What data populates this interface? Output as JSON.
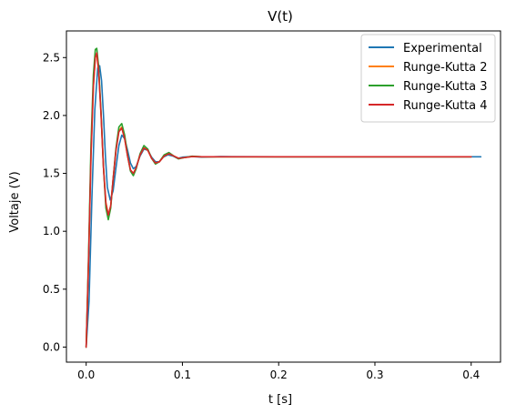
{
  "chart_data": {
    "type": "line",
    "title": "V(t)",
    "xlabel": "t [s]",
    "ylabel": "Voltaje (V)",
    "xlim": [
      -0.0205,
      0.4305
    ],
    "ylim": [
      -0.13,
      2.73
    ],
    "xticks": [
      0.0,
      0.1,
      0.2,
      0.3,
      0.4
    ],
    "xtick_labels": [
      "0.0",
      "0.1",
      "0.2",
      "0.3",
      "0.4"
    ],
    "yticks": [
      0.0,
      0.5,
      1.0,
      1.5,
      2.0,
      2.5
    ],
    "ytick_labels": [
      "0.0",
      "0.5",
      "1.0",
      "1.5",
      "2.0",
      "2.5"
    ],
    "grid": false,
    "legend_position": "top-right",
    "series": [
      {
        "name": "Experimental",
        "color": "#1f77b4",
        "points": [
          [
            0,
            0.0
          ],
          [
            0.003,
            0.4
          ],
          [
            0.006,
            1.3
          ],
          [
            0.009,
            2.05
          ],
          [
            0.012,
            2.41
          ],
          [
            0.014,
            2.43
          ],
          [
            0.016,
            2.3
          ],
          [
            0.018,
            2.0
          ],
          [
            0.02,
            1.65
          ],
          [
            0.022,
            1.38
          ],
          [
            0.025,
            1.27
          ],
          [
            0.028,
            1.35
          ],
          [
            0.031,
            1.55
          ],
          [
            0.034,
            1.74
          ],
          [
            0.037,
            1.83
          ],
          [
            0.04,
            1.8
          ],
          [
            0.043,
            1.7
          ],
          [
            0.046,
            1.59
          ],
          [
            0.049,
            1.54
          ],
          [
            0.052,
            1.56
          ],
          [
            0.056,
            1.65
          ],
          [
            0.06,
            1.71
          ],
          [
            0.064,
            1.7
          ],
          [
            0.068,
            1.64
          ],
          [
            0.072,
            1.6
          ],
          [
            0.076,
            1.6
          ],
          [
            0.08,
            1.64
          ],
          [
            0.085,
            1.66
          ],
          [
            0.09,
            1.65
          ],
          [
            0.095,
            1.63
          ],
          [
            0.1,
            1.64
          ],
          [
            0.11,
            1.645
          ],
          [
            0.12,
            1.64
          ],
          [
            0.14,
            1.645
          ],
          [
            0.2,
            1.643
          ],
          [
            0.3,
            1.643
          ],
          [
            0.41,
            1.643
          ]
        ]
      },
      {
        "name": "Runge-Kutta 2",
        "color": "#ff7f0e",
        "points": [
          [
            0,
            0.0
          ],
          [
            0.0025,
            0.75
          ],
          [
            0.005,
            1.65
          ],
          [
            0.0075,
            2.25
          ],
          [
            0.0095,
            2.5
          ],
          [
            0.011,
            2.53
          ],
          [
            0.013,
            2.38
          ],
          [
            0.0155,
            2.0
          ],
          [
            0.018,
            1.55
          ],
          [
            0.0205,
            1.25
          ],
          [
            0.023,
            1.14
          ],
          [
            0.0255,
            1.22
          ],
          [
            0.028,
            1.45
          ],
          [
            0.031,
            1.7
          ],
          [
            0.034,
            1.87
          ],
          [
            0.037,
            1.9
          ],
          [
            0.04,
            1.8
          ],
          [
            0.043,
            1.65
          ],
          [
            0.046,
            1.53
          ],
          [
            0.049,
            1.5
          ],
          [
            0.052,
            1.55
          ],
          [
            0.056,
            1.66
          ],
          [
            0.06,
            1.72
          ],
          [
            0.064,
            1.7
          ],
          [
            0.068,
            1.63
          ],
          [
            0.072,
            1.59
          ],
          [
            0.076,
            1.6
          ],
          [
            0.081,
            1.65
          ],
          [
            0.086,
            1.67
          ],
          [
            0.091,
            1.65
          ],
          [
            0.096,
            1.63
          ],
          [
            0.101,
            1.635
          ],
          [
            0.11,
            1.645
          ],
          [
            0.12,
            1.643
          ],
          [
            0.2,
            1.643
          ],
          [
            0.4,
            1.643
          ]
        ]
      },
      {
        "name": "Runge-Kutta 3",
        "color": "#2ca02c",
        "points": [
          [
            0,
            0.0
          ],
          [
            0.0025,
            0.8
          ],
          [
            0.005,
            1.75
          ],
          [
            0.0075,
            2.35
          ],
          [
            0.0095,
            2.57
          ],
          [
            0.011,
            2.58
          ],
          [
            0.013,
            2.42
          ],
          [
            0.0155,
            2.02
          ],
          [
            0.018,
            1.55
          ],
          [
            0.0205,
            1.2
          ],
          [
            0.023,
            1.1
          ],
          [
            0.0255,
            1.2
          ],
          [
            0.028,
            1.45
          ],
          [
            0.031,
            1.72
          ],
          [
            0.034,
            1.9
          ],
          [
            0.037,
            1.93
          ],
          [
            0.04,
            1.83
          ],
          [
            0.043,
            1.66
          ],
          [
            0.046,
            1.52
          ],
          [
            0.049,
            1.48
          ],
          [
            0.052,
            1.54
          ],
          [
            0.056,
            1.67
          ],
          [
            0.06,
            1.74
          ],
          [
            0.064,
            1.71
          ],
          [
            0.068,
            1.63
          ],
          [
            0.072,
            1.58
          ],
          [
            0.076,
            1.6
          ],
          [
            0.081,
            1.66
          ],
          [
            0.086,
            1.68
          ],
          [
            0.091,
            1.65
          ],
          [
            0.096,
            1.625
          ],
          [
            0.101,
            1.635
          ],
          [
            0.11,
            1.648
          ],
          [
            0.12,
            1.643
          ],
          [
            0.2,
            1.643
          ],
          [
            0.4,
            1.643
          ]
        ]
      },
      {
        "name": "Runge-Kutta 4",
        "color": "#d62728",
        "points": [
          [
            0,
            0.0
          ],
          [
            0.0025,
            0.75
          ],
          [
            0.005,
            1.65
          ],
          [
            0.0075,
            2.25
          ],
          [
            0.0095,
            2.5
          ],
          [
            0.011,
            2.54
          ],
          [
            0.013,
            2.38
          ],
          [
            0.0155,
            2.0
          ],
          [
            0.018,
            1.55
          ],
          [
            0.0205,
            1.24
          ],
          [
            0.023,
            1.14
          ],
          [
            0.0255,
            1.22
          ],
          [
            0.028,
            1.45
          ],
          [
            0.031,
            1.7
          ],
          [
            0.034,
            1.86
          ],
          [
            0.037,
            1.89
          ],
          [
            0.04,
            1.8
          ],
          [
            0.043,
            1.65
          ],
          [
            0.046,
            1.53
          ],
          [
            0.049,
            1.5
          ],
          [
            0.052,
            1.55
          ],
          [
            0.056,
            1.66
          ],
          [
            0.06,
            1.72
          ],
          [
            0.064,
            1.7
          ],
          [
            0.068,
            1.63
          ],
          [
            0.072,
            1.59
          ],
          [
            0.076,
            1.6
          ],
          [
            0.081,
            1.65
          ],
          [
            0.086,
            1.67
          ],
          [
            0.091,
            1.65
          ],
          [
            0.096,
            1.63
          ],
          [
            0.101,
            1.635
          ],
          [
            0.11,
            1.645
          ],
          [
            0.12,
            1.643
          ],
          [
            0.2,
            1.643
          ],
          [
            0.4,
            1.643
          ]
        ]
      }
    ]
  }
}
